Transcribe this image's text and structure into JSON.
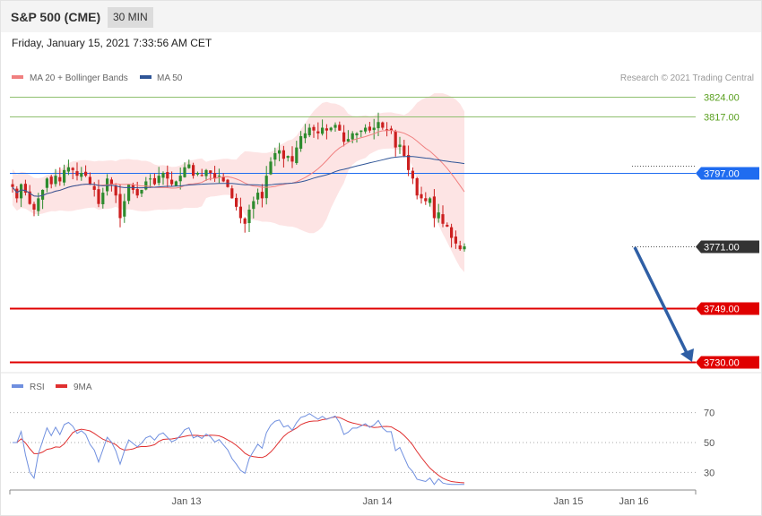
{
  "header": {
    "title": "S&P 500 (CME)",
    "timeframe": "30 MIN"
  },
  "date_line": "Friday, January 15, 2021 7:33:56 AM CET",
  "legend": {
    "bollinger": "MA 20 + Bollinger Bands",
    "ma50": "MA 50",
    "copyright": "Research © 2021 Trading Central",
    "rsi": "RSI",
    "rsi_ma": "9MA"
  },
  "colors": {
    "bollinger": "#f08080",
    "ma50": "#2f5597",
    "bull": "#2e8b2e",
    "bear": "#cc1f1f",
    "resistance": "#8fbf6f",
    "pivot": "#1f6cf0",
    "support": "#e00000",
    "arrow": "#2f5fa5",
    "rsi": "#6f8fdf",
    "rsi_ma": "#e03030"
  },
  "chart_data": {
    "type": "candlestick",
    "instrument": "S&P 500 (CME)",
    "interval": "30 MIN",
    "price_levels": [
      {
        "value": "3824.00",
        "kind": "resistance"
      },
      {
        "value": "3817.00",
        "kind": "resistance"
      },
      {
        "value": "3797.00",
        "kind": "pivot"
      },
      {
        "value": "3771.00",
        "kind": "last"
      },
      {
        "value": "3749.00",
        "kind": "support"
      },
      {
        "value": "3730.00",
        "kind": "support"
      }
    ],
    "x_ticks": [
      "Jan 13",
      "Jan 14",
      "Jan 15",
      "Jan 16"
    ],
    "rsi_levels": [
      "70",
      "50",
      "30"
    ],
    "forecast": {
      "from": 3771,
      "to": 3730
    },
    "closes": [
      3792,
      3788,
      3793,
      3790,
      3786,
      3784,
      3788,
      3791,
      3795,
      3793,
      3796,
      3794,
      3798,
      3799,
      3798,
      3796,
      3797,
      3796,
      3793,
      3791,
      3786,
      3790,
      3795,
      3793,
      3789,
      3781,
      3787,
      3793,
      3791,
      3789,
      3791,
      3794,
      3795,
      3793,
      3796,
      3797,
      3795,
      3793,
      3794,
      3796,
      3799,
      3800,
      3796,
      3797,
      3796,
      3798,
      3797,
      3795,
      3796,
      3794,
      3792,
      3788,
      3785,
      3781,
      3779,
      3784,
      3787,
      3790,
      3788,
      3796,
      3801,
      3804,
      3805,
      3802,
      3803,
      3801,
      3806,
      3810,
      3811,
      3813,
      3812,
      3811,
      3813,
      3812,
      3813,
      3814,
      3812,
      3808,
      3809,
      3811,
      3811,
      3812,
      3813,
      3812,
      3813,
      3815,
      3813,
      3812,
      3812,
      3806,
      3807,
      3803,
      3798,
      3795,
      3789,
      3788,
      3787,
      3788,
      3781,
      3783,
      3779,
      3778,
      3774,
      3772,
      3770,
      3771
    ]
  }
}
